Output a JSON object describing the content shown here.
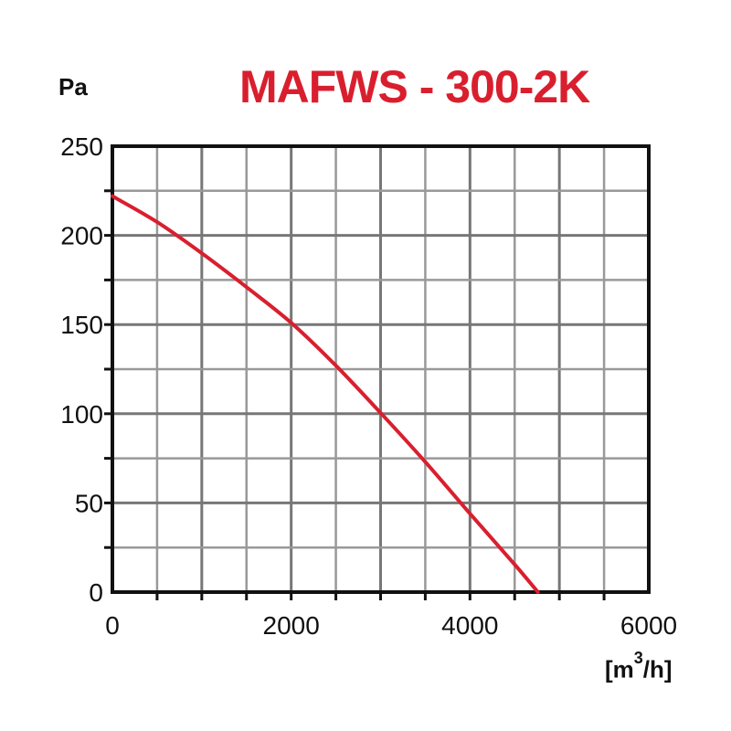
{
  "chart_data": {
    "type": "line",
    "title": "MAFWS - 300-2K",
    "ylabel": "Pa",
    "xlabel_parts": [
      "[m",
      "3",
      "/h]"
    ],
    "xlim": [
      0,
      6000
    ],
    "ylim": [
      0,
      250
    ],
    "xticks": [
      0,
      2000,
      4000,
      6000
    ],
    "yticks": [
      0,
      50,
      100,
      150,
      200,
      250
    ],
    "x_grid_step": 500,
    "y_grid_step": 25,
    "grid": true,
    "series": [
      {
        "color": "#d91f2e",
        "x": [
          0,
          500,
          1000,
          1500,
          2000,
          2500,
          3000,
          3500,
          4000,
          4500,
          4760
        ],
        "y": [
          222,
          207.5,
          190,
          171,
          151,
          127,
          100.5,
          73,
          44,
          15.5,
          0
        ]
      }
    ]
  }
}
